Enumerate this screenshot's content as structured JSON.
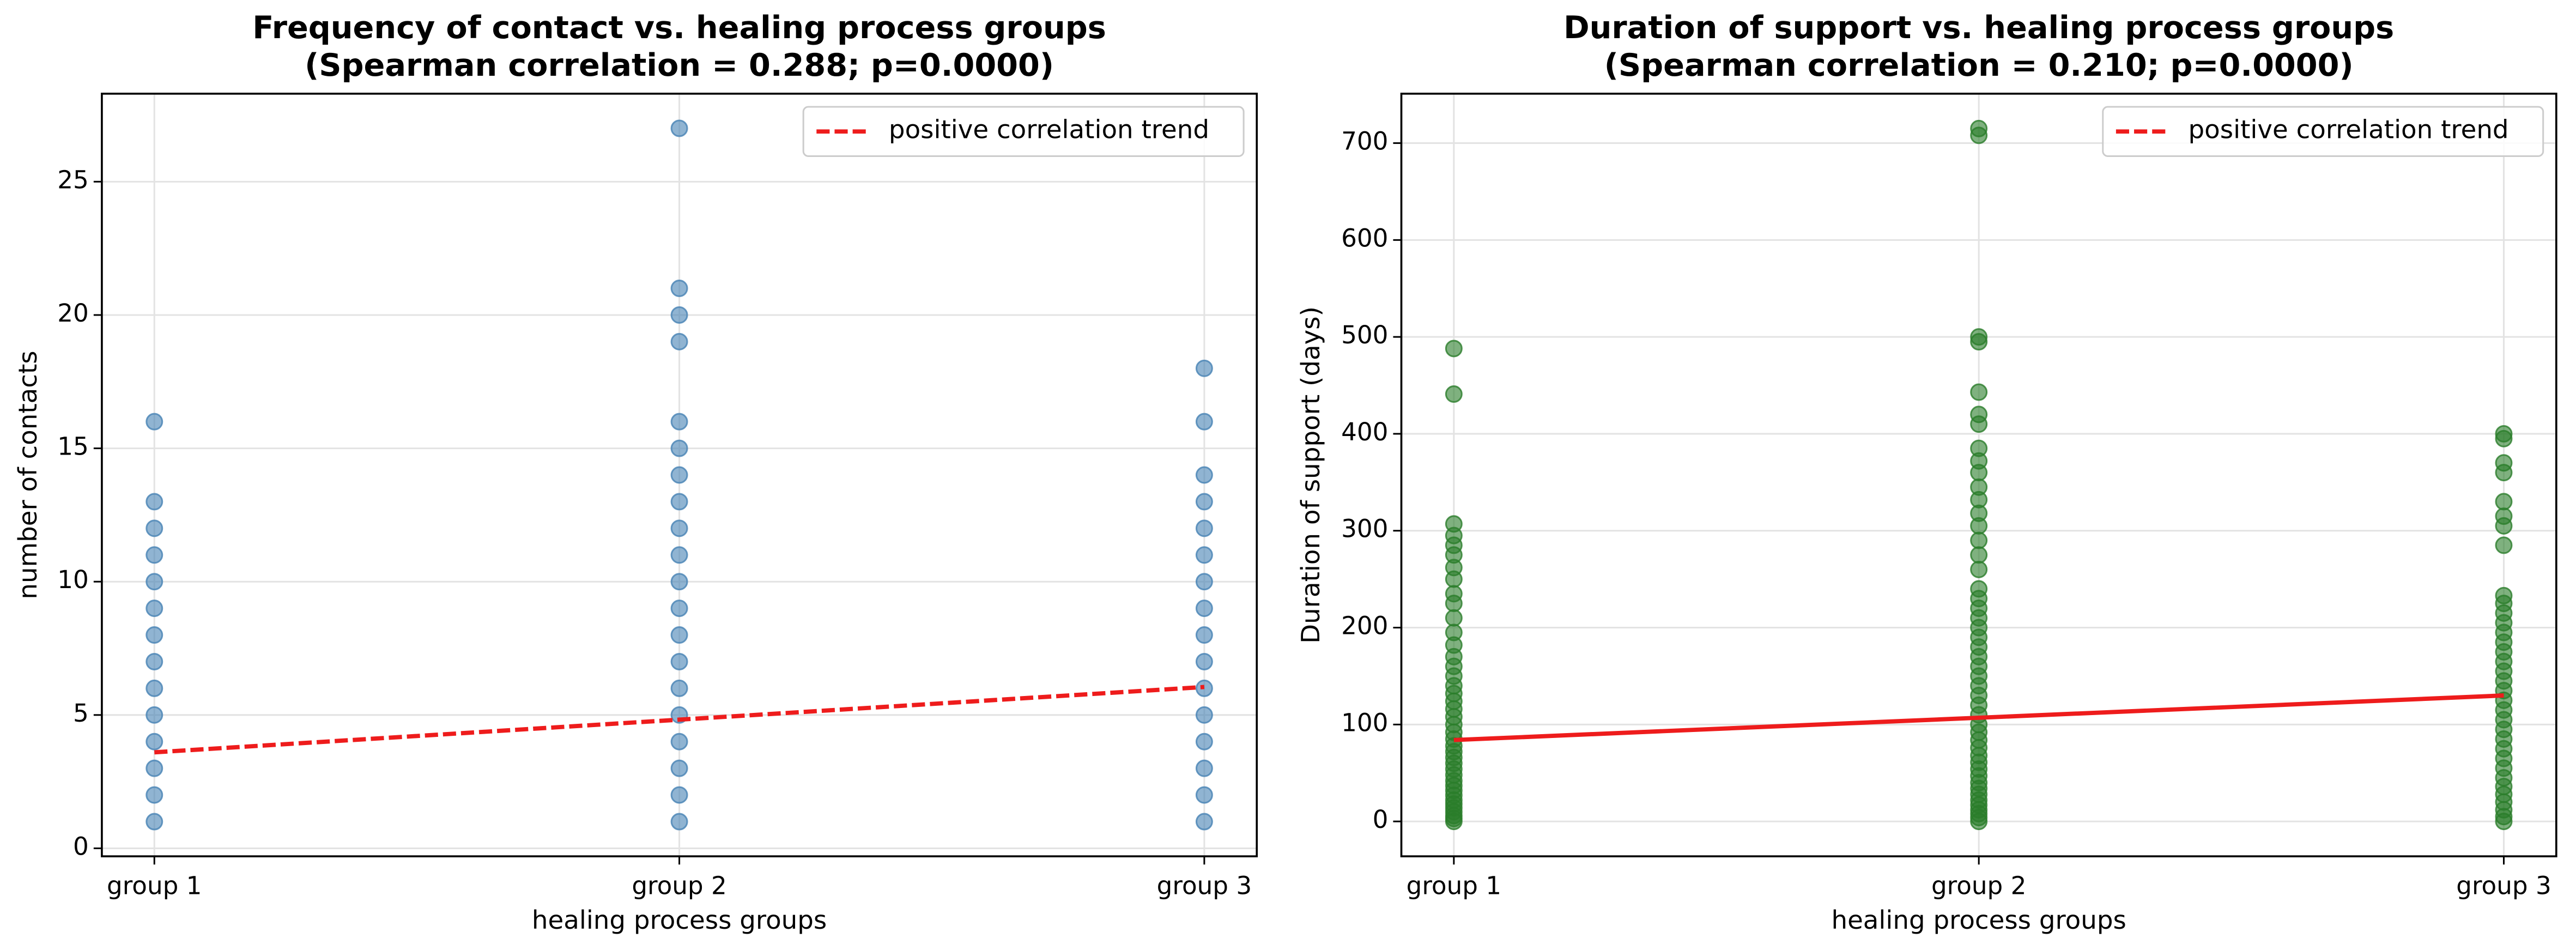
{
  "chart_data": [
    {
      "type": "scatter",
      "title": "Frequency of contact vs. healing process groups",
      "subtitle": "(Spearman correlation = 0.288; p=0.0000)",
      "xlabel": "healing process groups",
      "ylabel": "number of contacts",
      "xlim": [
        0.9,
        3.1
      ],
      "ylim": [
        -0.3,
        28.3
      ],
      "xticks": [
        {
          "value": 1,
          "label": "group 1"
        },
        {
          "value": 2,
          "label": "group 2"
        },
        {
          "value": 3,
          "label": "group 3"
        }
      ],
      "yticks": [
        0,
        5,
        10,
        15,
        20,
        25
      ],
      "grid": true,
      "legend": "upper right",
      "series": [
        {
          "color": "#4682b4",
          "x": [
            1,
            1,
            1,
            1,
            1,
            1,
            1,
            1,
            1,
            1,
            1,
            1,
            1,
            1,
            2,
            2,
            2,
            2,
            2,
            2,
            2,
            2,
            2,
            2,
            2,
            2,
            2,
            2,
            2,
            2,
            2,
            2,
            2,
            2,
            3,
            3,
            3,
            3,
            3,
            3,
            3,
            3,
            3,
            3,
            3,
            3,
            3,
            3,
            3,
            3
          ],
          "values": [
            1,
            2,
            3,
            4,
            5,
            6,
            7,
            8,
            9,
            10,
            11,
            12,
            13,
            16,
            1,
            2,
            3,
            4,
            5,
            6,
            7,
            8,
            9,
            10,
            11,
            12,
            13,
            14,
            15,
            16,
            19,
            20,
            21,
            27,
            1,
            2,
            3,
            4,
            5,
            6,
            7,
            8,
            9,
            10,
            11,
            12,
            13,
            14,
            16,
            18
          ]
        },
        {
          "name": "positive correlation trend",
          "type": "line",
          "color": "#ee1c1c",
          "dashed": true,
          "x": [
            1,
            3
          ],
          "values": [
            3.6,
            6.05
          ]
        }
      ]
    },
    {
      "type": "scatter",
      "title": "Duration of support vs. healing process groups",
      "subtitle": "(Spearman correlation = 0.210; p=0.0000)",
      "xlabel": "healing process groups",
      "ylabel": "Duration of support (days)",
      "xlim": [
        0.9,
        3.1
      ],
      "ylim": [
        -36,
        751
      ],
      "xticks": [
        {
          "value": 1,
          "label": "group 1"
        },
        {
          "value": 2,
          "label": "group 2"
        },
        {
          "value": 3,
          "label": "group 3"
        }
      ],
      "yticks": [
        0,
        100,
        200,
        300,
        400,
        500,
        600,
        700
      ],
      "grid": true,
      "legend": "upper right",
      "series": [
        {
          "color": "#2a7d2a",
          "x": [
            1,
            1,
            1,
            1,
            1,
            1,
            1,
            1,
            1,
            1,
            1,
            1,
            1,
            1,
            1,
            1,
            1,
            1,
            1,
            1,
            1,
            1,
            1,
            1,
            1,
            1,
            1,
            1,
            1,
            1,
            1,
            1,
            1,
            1,
            1,
            1,
            1,
            1,
            1,
            1,
            1,
            2,
            2,
            2,
            2,
            2,
            2,
            2,
            2,
            2,
            2,
            2,
            2,
            2,
            2,
            2,
            2,
            2,
            2,
            2,
            2,
            2,
            2,
            2,
            2,
            2,
            2,
            2,
            2,
            2,
            2,
            2,
            2,
            2,
            2,
            2,
            2,
            2,
            2,
            2,
            2,
            2,
            2,
            2,
            2,
            2,
            2,
            2,
            2,
            3,
            3,
            3,
            3,
            3,
            3,
            3,
            3,
            3,
            3,
            3,
            3,
            3,
            3,
            3,
            3,
            3,
            3,
            3,
            3,
            3,
            3,
            3,
            3,
            3,
            3,
            3,
            3,
            3,
            3,
            3,
            3,
            3,
            3
          ],
          "values": [
            0,
            3,
            6,
            10,
            14,
            18,
            22,
            27,
            32,
            37,
            42,
            48,
            54,
            60,
            66,
            72,
            78,
            85,
            92,
            100,
            108,
            116,
            124,
            132,
            140,
            150,
            160,
            170,
            182,
            195,
            210,
            225,
            235,
            250,
            262,
            275,
            285,
            295,
            307,
            441,
            488,
            0,
            4,
            8,
            12,
            17,
            22,
            28,
            34,
            40,
            47,
            54,
            61,
            68,
            76,
            84,
            92,
            100,
            110,
            120,
            130,
            140,
            150,
            160,
            170,
            180,
            190,
            200,
            210,
            220,
            230,
            240,
            260,
            275,
            290,
            305,
            318,
            332,
            345,
            360,
            372,
            385,
            410,
            420,
            443,
            495,
            500,
            708,
            715,
            0,
            5,
            12,
            20,
            28,
            36,
            45,
            55,
            65,
            75,
            85,
            95,
            105,
            115,
            125,
            135,
            145,
            155,
            165,
            175,
            185,
            195,
            205,
            215,
            225,
            233,
            285,
            305,
            315,
            330,
            360,
            370,
            395,
            400
          ]
        },
        {
          "name": "positive correlation trend",
          "type": "line",
          "color": "#ee1c1c",
          "dashed": false,
          "x": [
            1,
            3
          ],
          "values": [
            84,
            130
          ]
        }
      ]
    }
  ]
}
